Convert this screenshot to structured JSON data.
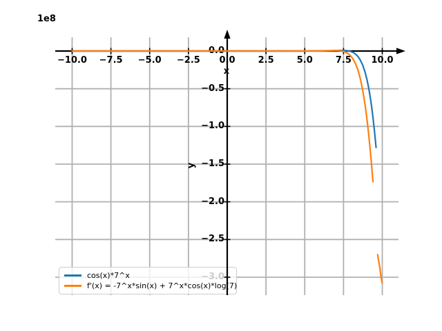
{
  "chart_data": {
    "type": "line",
    "title": "",
    "xlabel": "x",
    "ylabel": "y",
    "offset_text": "1e8",
    "y_scale": "1e8",
    "xlim": [
      -11.09,
      11.09
    ],
    "ylim": [
      -3.238,
      0.183
    ],
    "grid": true,
    "grid_color": "#b0b0b0",
    "axis_color": "#000000",
    "background_color": "#ffffff",
    "legend_position": "lower left",
    "xticks": [
      -10,
      -7.5,
      -5,
      -2.5,
      0,
      2.5,
      5,
      7.5,
      10
    ],
    "xtick_labels": [
      "−10.0",
      "−7.5",
      "−5.0",
      "−2.5",
      "0.0",
      "2.5",
      "5.0",
      "7.5",
      "10.0"
    ],
    "yticks": [
      0,
      -0.5,
      -1,
      -1.5,
      -2,
      -2.5,
      -3
    ],
    "ytick_labels": [
      "0.0",
      "−0.5",
      "−1.0",
      "−1.5",
      "−2.0",
      "−2.5",
      "−3.0"
    ],
    "series": [
      {
        "name": "cos(x)*7^x",
        "color": "#1f77b4",
        "segments": [
          [
            [
              -10,
              0
            ],
            [
              -9,
              0
            ],
            [
              -8,
              0
            ],
            [
              -7,
              0
            ],
            [
              -6,
              0
            ],
            [
              -5,
              0
            ],
            [
              -4,
              0
            ],
            [
              -3,
              0
            ],
            [
              -2,
              0
            ],
            [
              -1,
              0
            ],
            [
              0,
              0
            ],
            [
              1,
              0
            ],
            [
              2,
              0
            ],
            [
              3,
              0
            ],
            [
              4,
              0
            ],
            [
              5,
              0.0005
            ],
            [
              5.5,
              0.0008
            ],
            [
              6,
              0.0011
            ],
            [
              6.5,
              0.003
            ],
            [
              7,
              0.0062
            ],
            [
              7.2,
              0.0075
            ],
            [
              7.4,
              0.0078
            ],
            [
              7.5,
              0.0076
            ],
            [
              7.6,
              0.0067
            ],
            [
              7.75,
              0.0037
            ],
            [
              7.9,
              -0.0022
            ],
            [
              8,
              -0.0084
            ],
            [
              8.1,
              -0.017
            ],
            [
              8.25,
              -0.0361
            ],
            [
              8.4,
              -0.0654
            ],
            [
              8.5,
              -0.0918
            ],
            [
              8.6,
              -0.126
            ],
            [
              8.75,
              -0.194
            ],
            [
              8.9,
              -0.287
            ],
            [
              9,
              -0.368
            ],
            [
              9.1,
              -0.465
            ],
            [
              9.2,
              -0.581
            ],
            [
              9.3,
              -0.719
            ],
            [
              9.4,
              -0.88
            ],
            [
              9.5,
              -1.069
            ],
            [
              9.6,
              -1.28
            ]
          ]
        ]
      },
      {
        "name": "f'(x) = -7^x*sin(x) + 7^x*cos(x)*log(7)",
        "color": "#ff7f0e",
        "segments": [
          [
            [
              -10,
              0
            ],
            [
              -9,
              0
            ],
            [
              -8,
              0
            ],
            [
              -7,
              0
            ],
            [
              -6,
              0
            ],
            [
              -5,
              0
            ],
            [
              -4,
              0
            ],
            [
              -3,
              0
            ],
            [
              -2,
              0
            ],
            [
              -1,
              0
            ],
            [
              0,
              0
            ],
            [
              1,
              0
            ],
            [
              2,
              0
            ],
            [
              3,
              0
            ],
            [
              4,
              0
            ],
            [
              5,
              0.0003
            ],
            [
              5.5,
              0.0009
            ],
            [
              6,
              0.0025
            ],
            [
              6.5,
              0.0052
            ],
            [
              7,
              0.0067
            ],
            [
              7.2,
              0.0047
            ],
            [
              7.35,
              0.0004
            ],
            [
              7.5,
              -0.0057
            ],
            [
              7.65,
              -0.0171
            ],
            [
              7.75,
              -0.0281
            ],
            [
              7.9,
              -0.0517
            ],
            [
              8,
              -0.0734
            ],
            [
              8.1,
              -0.101
            ],
            [
              8.25,
              -0.157
            ],
            [
              8.4,
              -0.235
            ],
            [
              8.5,
              -0.3
            ],
            [
              8.6,
              -0.382
            ],
            [
              8.75,
              -0.532
            ],
            [
              8.9,
              -0.726
            ],
            [
              9,
              -0.882
            ],
            [
              9.1,
              -1.061
            ],
            [
              9.2,
              -1.264
            ],
            [
              9.3,
              -1.489
            ],
            [
              9.4,
              -1.735
            ]
          ],
          [
            [
              9.7,
              -2.7
            ],
            [
              9.78,
              -2.8
            ],
            [
              9.85,
              -2.88
            ],
            [
              9.9,
              -2.97
            ],
            [
              9.95,
              -3.03
            ],
            [
              10,
              -3.08
            ]
          ]
        ]
      }
    ]
  }
}
